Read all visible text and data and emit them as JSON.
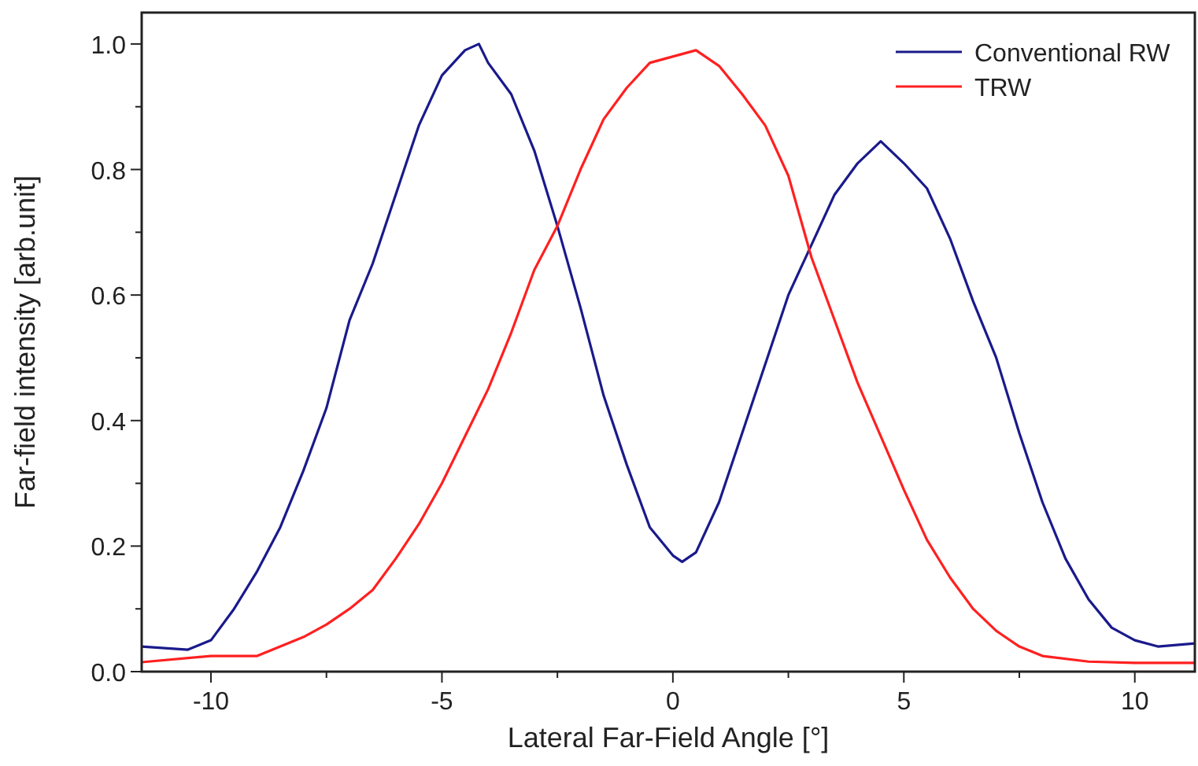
{
  "chart_data": {
    "type": "line",
    "xlabel": "Lateral Far-Field Angle [°]",
    "ylabel": "Far-field intensity [arb.unit]",
    "xlim": [
      -11.5,
      11.3
    ],
    "ylim": [
      0,
      1.05
    ],
    "xticks": [
      -10,
      {
        "value": -7.5,
        "label": null
      },
      -5,
      {
        "value": -2.5,
        "label": null
      },
      0,
      {
        "value": 2.5,
        "label": null
      },
      5,
      {
        "value": 7.5,
        "label": null
      },
      10
    ],
    "yticks": [
      "0.0",
      {
        "value": 0.1,
        "label": null
      },
      0.2,
      {
        "value": 0.3,
        "label": null
      },
      0.4,
      {
        "value": 0.5,
        "label": null
      },
      0.6,
      {
        "value": 0.7,
        "label": null
      },
      0.8,
      {
        "value": 0.9,
        "label": null
      },
      "1.0"
    ],
    "legend": "top right",
    "grid": false,
    "marker": "none",
    "line_style": "solid",
    "series": [
      {
        "name": "Conventional RW",
        "color": "#1a1a8c",
        "x": [
          -11.5,
          -10.5,
          -10,
          -9.5,
          -9,
          -8.5,
          -8,
          -7.5,
          -7,
          -6.5,
          -6,
          -5.5,
          -5,
          -4.5,
          -4.2,
          -4,
          -3.5,
          -3,
          -2.5,
          -2,
          -1.5,
          -1,
          -0.5,
          0,
          0.2,
          0.5,
          1,
          1.5,
          2,
          2.5,
          3,
          3.5,
          4,
          4.5,
          5,
          5.5,
          6,
          6.5,
          7,
          7.5,
          8,
          8.5,
          9,
          9.5,
          10,
          10.5,
          11.3
        ],
        "values": [
          0.04,
          0.035,
          0.05,
          0.1,
          0.16,
          0.23,
          0.32,
          0.42,
          0.56,
          0.65,
          0.76,
          0.87,
          0.95,
          0.99,
          1.0,
          0.97,
          0.92,
          0.83,
          0.71,
          0.58,
          0.44,
          0.33,
          0.23,
          0.185,
          0.175,
          0.19,
          0.27,
          0.38,
          0.49,
          0.6,
          0.68,
          0.76,
          0.81,
          0.845,
          0.81,
          0.77,
          0.69,
          0.59,
          0.5,
          0.38,
          0.27,
          0.18,
          0.115,
          0.07,
          0.05,
          0.04,
          0.045
        ]
      },
      {
        "name": "TRW",
        "color": "#ff2020",
        "x": [
          -11.5,
          -10,
          -9,
          -8.5,
          -8,
          -7.5,
          -7,
          -6.5,
          -6,
          -5.5,
          -5,
          -4.5,
          -4,
          -3.5,
          -3,
          -2.5,
          -2,
          -1.5,
          -1,
          -0.5,
          0,
          0.5,
          1,
          1.5,
          2,
          2.5,
          3,
          3.5,
          4,
          4.5,
          5,
          5.5,
          6,
          6.5,
          7,
          7.5,
          8,
          9,
          10,
          11.3
        ],
        "values": [
          0.015,
          0.025,
          0.025,
          0.04,
          0.055,
          0.075,
          0.1,
          0.13,
          0.18,
          0.235,
          0.3,
          0.375,
          0.45,
          0.54,
          0.64,
          0.71,
          0.8,
          0.88,
          0.93,
          0.97,
          0.98,
          0.99,
          0.965,
          0.92,
          0.87,
          0.79,
          0.66,
          0.56,
          0.46,
          0.375,
          0.29,
          0.21,
          0.15,
          0.1,
          0.065,
          0.04,
          0.025,
          0.016,
          0.014,
          0.014
        ]
      }
    ]
  }
}
